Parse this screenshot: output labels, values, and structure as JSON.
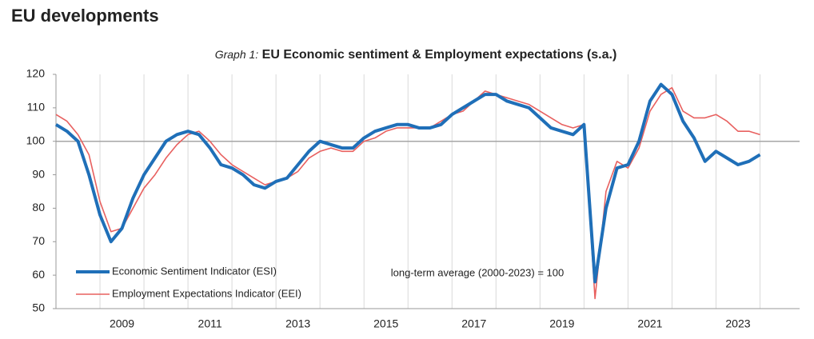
{
  "header": {
    "title": "EU developments"
  },
  "chart_data": {
    "type": "line",
    "graph_label": "Graph 1:",
    "title": "EU Economic sentiment & Employment expectations (s.a.)",
    "annotation": "long-term average (2000-2023) = 100",
    "reference_line": 100,
    "legend": "lower left",
    "x": [
      2008,
      2008.25,
      2008.5,
      2008.75,
      2009,
      2009.25,
      2009.5,
      2009.75,
      2010,
      2010.25,
      2010.5,
      2010.75,
      2011,
      2011.25,
      2011.5,
      2011.75,
      2012,
      2012.25,
      2012.5,
      2012.75,
      2013,
      2013.25,
      2013.5,
      2013.75,
      2014,
      2014.25,
      2014.5,
      2014.75,
      2015,
      2015.25,
      2015.5,
      2015.75,
      2016,
      2016.25,
      2016.5,
      2016.75,
      2017,
      2017.25,
      2017.5,
      2017.75,
      2018,
      2018.25,
      2018.5,
      2018.75,
      2019,
      2019.25,
      2019.5,
      2019.75,
      2020,
      2020.25,
      2020.5,
      2020.75,
      2021,
      2021.25,
      2021.5,
      2021.75,
      2022,
      2022.25,
      2022.5,
      2022.75,
      2023,
      2023.25,
      2023.5,
      2023.75,
      2024
    ],
    "series": [
      {
        "name": "Economic Sentiment Indicator (ESI)",
        "color": "#1f6fb8",
        "width": 4,
        "values": [
          105,
          103,
          100,
          90,
          78,
          70,
          74,
          83,
          90,
          95,
          100,
          102,
          103,
          102,
          98,
          93,
          92,
          90,
          87,
          86,
          88,
          89,
          93,
          97,
          100,
          99,
          98,
          98,
          101,
          103,
          104,
          105,
          105,
          104,
          104,
          105,
          108,
          110,
          112,
          114,
          114,
          112,
          111,
          110,
          107,
          104,
          103,
          102,
          105,
          58,
          80,
          92,
          93,
          100,
          112,
          117,
          114,
          106,
          101,
          94,
          97,
          95,
          93,
          94,
          96
        ]
      },
      {
        "name": "Employment Expectations Indicator (EEI)",
        "color": "#e8605f",
        "width": 1.6,
        "values": [
          108,
          106,
          102,
          96,
          82,
          73,
          74,
          80,
          86,
          90,
          95,
          99,
          102,
          103,
          100,
          96,
          93,
          91,
          89,
          87,
          88,
          89,
          91,
          95,
          97,
          98,
          97,
          97,
          100,
          101,
          103,
          104,
          104,
          104,
          104,
          106,
          108,
          109,
          112,
          115,
          114,
          113,
          112,
          111,
          109,
          107,
          105,
          104,
          105,
          53,
          85,
          94,
          92,
          98,
          109,
          114,
          116,
          109,
          107,
          107,
          108,
          106,
          103,
          103,
          102
        ]
      }
    ],
    "xlim": [
      2008,
      2024.9
    ],
    "xticks": [
      {
        "value": 2009.5,
        "label": "2009"
      },
      {
        "value": 2011.5,
        "label": "2011"
      },
      {
        "value": 2013.5,
        "label": "2013"
      },
      {
        "value": 2015.5,
        "label": "2015"
      },
      {
        "value": 2017.5,
        "label": "2017"
      },
      {
        "value": 2019.5,
        "label": "2019"
      },
      {
        "value": 2021.5,
        "label": "2021"
      },
      {
        "value": 2023.5,
        "label": "2023"
      }
    ],
    "xgrid": [
      2009,
      2010,
      2011,
      2012,
      2013,
      2014,
      2015,
      2016,
      2017,
      2018,
      2019,
      2020,
      2021,
      2022,
      2023,
      2024
    ],
    "ylim": [
      50,
      120
    ],
    "yticks": [
      50,
      60,
      70,
      80,
      90,
      100,
      110,
      120
    ],
    "grid": true
  }
}
